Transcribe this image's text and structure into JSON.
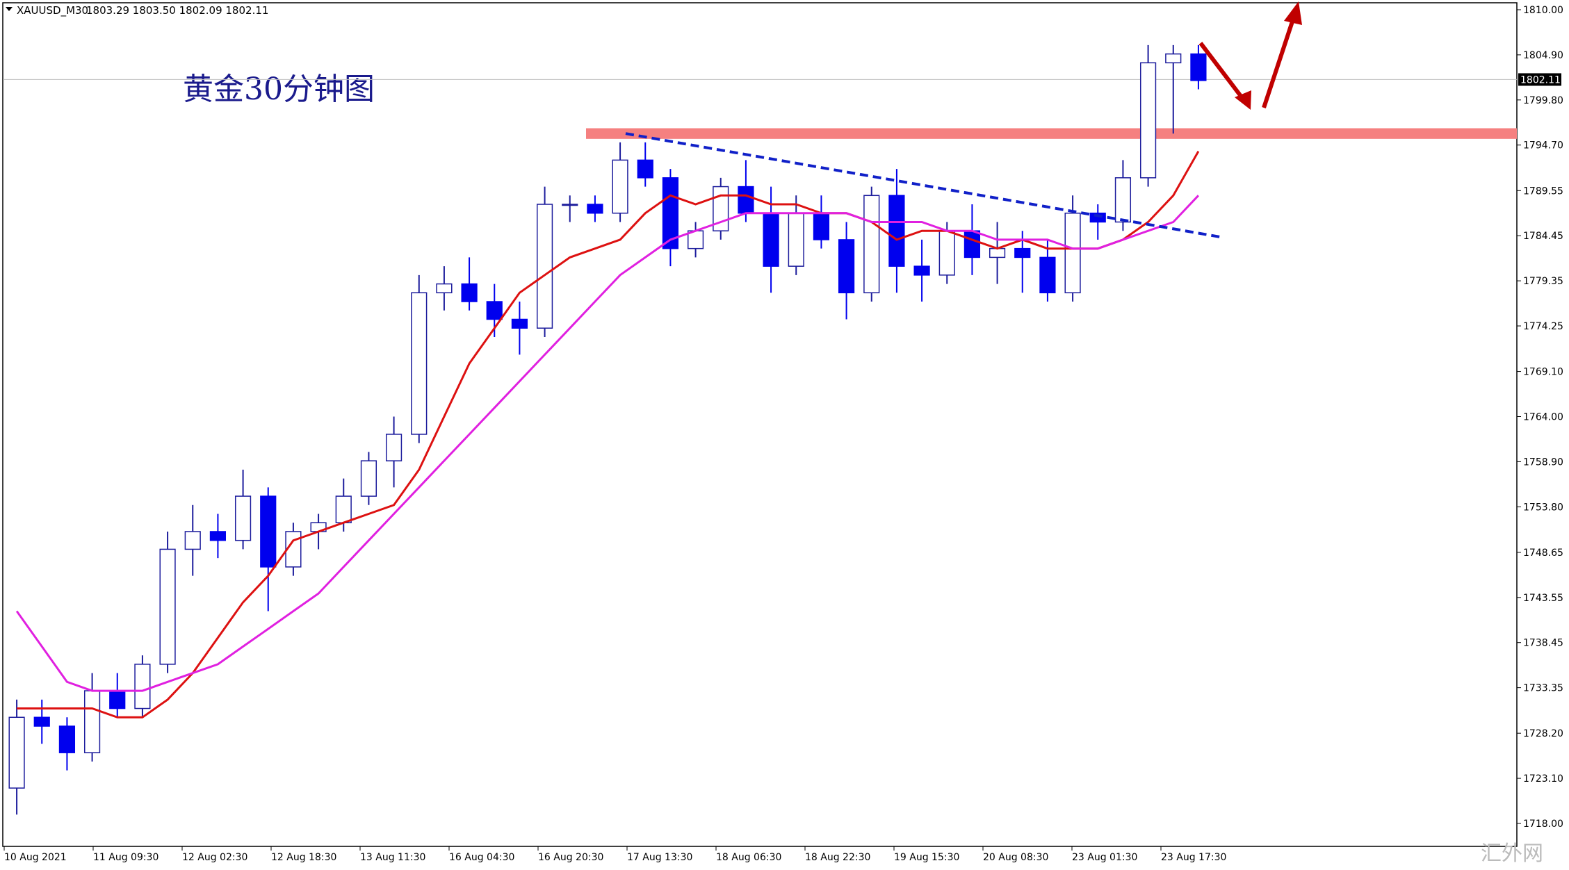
{
  "chart_data": {
    "type": "candlestick",
    "header": [
      "XAUUSD_M30",
      "1803.29 1803.50 1802.09 1802.11"
    ],
    "title": "黄金30分钟图",
    "watermark": "汇外网",
    "xticklabels": [
      "10 Aug 2021",
      "11 Aug 09:30",
      "12 Aug 02:30",
      "12 Aug 18:30",
      "13 Aug 11:30",
      "16 Aug 04:30",
      "16 Aug 20:30",
      "17 Aug 13:30",
      "18 Aug 06:30",
      "18 Aug 22:30",
      "19 Aug 15:30",
      "20 Aug 08:30",
      "23 Aug 01:30",
      "23 Aug 17:30"
    ],
    "ylim": [
      1718,
      1810
    ],
    "yticks": [
      {
        "value": 1810,
        "label": "1810.00"
      },
      {
        "value": 1804.9,
        "label": "1804.90"
      },
      {
        "value": 1799.8,
        "label": "1799.80"
      },
      {
        "value": 1794.7,
        "label": "1794.70"
      },
      {
        "value": 1789.55,
        "label": "1789.55"
      },
      {
        "value": 1784.45,
        "label": "1784.45"
      },
      {
        "value": 1779.35,
        "label": "1779.35"
      },
      {
        "value": 1774.25,
        "label": "1774.25"
      },
      {
        "value": 1769.1,
        "label": "1769.10"
      },
      {
        "value": 1764,
        "label": "1764.00"
      },
      {
        "value": 1758.9,
        "label": "1758.90"
      },
      {
        "value": 1753.8,
        "label": "1753.80"
      },
      {
        "value": 1748.65,
        "label": "1748.65"
      },
      {
        "value": 1743.55,
        "label": "1743.55"
      },
      {
        "value": 1738.45,
        "label": "1738.45"
      },
      {
        "value": 1733.35,
        "label": "1733.35"
      },
      {
        "value": 1728.2,
        "label": "1728.20"
      },
      {
        "value": 1723.1,
        "label": "1723.10"
      },
      {
        "value": 1718,
        "label": "1718.00"
      }
    ],
    "last_price": 1802.11,
    "up_color": "#1c1c9c",
    "down_color": "#0000ee",
    "open": [
      1722,
      1730,
      1729,
      1726,
      1733,
      1731,
      1736,
      1749,
      1751,
      1750,
      1755,
      1747,
      1751,
      1752,
      1755,
      1759,
      1762,
      1778,
      1779,
      1777,
      1775,
      1774,
      1788,
      1788,
      1787,
      1793,
      1791,
      1783,
      1785,
      1790,
      1787,
      1781,
      1787,
      1784,
      1778,
      1789,
      1781,
      1780,
      1785,
      1782,
      1783,
      1782,
      1778,
      1787,
      1786,
      1791,
      1804,
      1805
    ],
    "high": [
      1732,
      1732,
      1730,
      1735,
      1735,
      1737,
      1751,
      1754,
      1753,
      1758,
      1756,
      1752,
      1753,
      1757,
      1760,
      1764,
      1780,
      1781,
      1782,
      1779,
      1777,
      1790,
      1789,
      1789,
      1795,
      1795,
      1792,
      1786,
      1791,
      1793,
      1790,
      1789,
      1789,
      1786,
      1790,
      1792,
      1784,
      1786,
      1788,
      1786,
      1785,
      1784,
      1789,
      1788,
      1793,
      1806,
      1806,
      1806
    ],
    "low": [
      1719,
      1727,
      1724,
      1725,
      1730,
      1730,
      1735,
      1746,
      1748,
      1749,
      1742,
      1746,
      1749,
      1751,
      1754,
      1756,
      1761,
      1776,
      1776,
      1773,
      1771,
      1773,
      1786,
      1786,
      1786,
      1790,
      1781,
      1782,
      1784,
      1786,
      1778,
      1780,
      1783,
      1775,
      1777,
      1778,
      1777,
      1779,
      1780,
      1779,
      1778,
      1777,
      1777,
      1784,
      1785,
      1790,
      1796,
      1801
    ],
    "close": [
      1730,
      1729,
      1726,
      1733,
      1731,
      1736,
      1749,
      1751,
      1750,
      1755,
      1747,
      1751,
      1752,
      1755,
      1759,
      1762,
      1778,
      1779,
      1777,
      1775,
      1774,
      1788,
      1788,
      1787,
      1793,
      1791,
      1783,
      1785,
      1790,
      1787,
      1781,
      1787,
      1784,
      1778,
      1789,
      1781,
      1780,
      1785,
      1782,
      1783,
      1782,
      1778,
      1787,
      1786,
      1791,
      1804,
      1805,
      1802
    ],
    "series": [
      {
        "color": "#dd1111",
        "values": [
          1731,
          1731,
          1731,
          1731,
          1730,
          1730,
          1732,
          1735,
          1739,
          1743,
          1746,
          1750,
          1751,
          1752,
          1753,
          1754,
          1758,
          1764,
          1770,
          1774,
          1778,
          1780,
          1782,
          1783,
          1784,
          1787,
          1789,
          1788,
          1789,
          1789,
          1788,
          1788,
          1787,
          1787,
          1786,
          1784,
          1785,
          1785,
          1784,
          1783,
          1784,
          1783,
          1783,
          1783,
          1784,
          1786,
          1789,
          1794
        ]
      },
      {
        "color": "#e020e0",
        "values": [
          1742,
          1738,
          1734,
          1733,
          1733,
          1733,
          1734,
          1735,
          1736,
          1738,
          1740,
          1742,
          1744,
          1747,
          1750,
          1753,
          1756,
          1759,
          1762,
          1765,
          1768,
          1771,
          1774,
          1777,
          1780,
          1782,
          1784,
          1785,
          1786,
          1787,
          1787,
          1787,
          1787,
          1787,
          1786,
          1786,
          1786,
          1785,
          1785,
          1784,
          1784,
          1784,
          1783,
          1783,
          1784,
          1785,
          1786,
          1789
        ]
      }
    ],
    "resistance_zone": [
      1795.4,
      1796.6
    ],
    "trendline": [
      1796,
      1784.3
    ]
  }
}
